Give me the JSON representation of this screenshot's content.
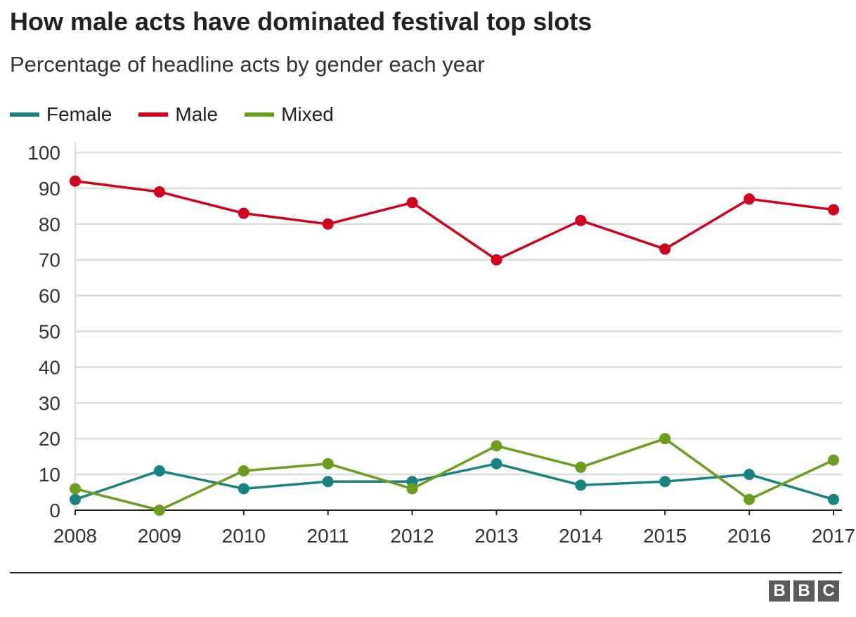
{
  "header": {
    "title": "How male acts have dominated festival top slots",
    "subtitle": "Percentage of headline acts by gender each year"
  },
  "legend": [
    {
      "label": "Female",
      "color": "#168382"
    },
    {
      "label": "Male",
      "color": "#d1001c"
    },
    {
      "label": "Mixed",
      "color": "#6b9e1f"
    }
  ],
  "colors": {
    "grid": "#dcdcdc",
    "axis": "#222222",
    "text": "#333333"
  },
  "chart_data": {
    "type": "line",
    "title": "How male acts have dominated festival top slots",
    "subtitle": "Percentage of headline acts by gender each year",
    "xlabel": "",
    "ylabel": "",
    "x": [
      2008,
      2009,
      2010,
      2011,
      2012,
      2013,
      2014,
      2015,
      2016,
      2017
    ],
    "xlim": [
      2008,
      2017
    ],
    "ylim": [
      0,
      100
    ],
    "yticks": [
      0,
      10,
      20,
      30,
      40,
      50,
      60,
      70,
      80,
      90,
      100
    ],
    "grid": true,
    "legend_position": "top-left",
    "series": [
      {
        "name": "Female",
        "color": "#168382",
        "values": [
          3,
          11,
          6,
          8,
          8,
          13,
          7,
          8,
          10,
          3
        ]
      },
      {
        "name": "Male",
        "color": "#d1001c",
        "values": [
          92,
          89,
          83,
          80,
          86,
          70,
          81,
          73,
          87,
          84
        ]
      },
      {
        "name": "Mixed",
        "color": "#6b9e1f",
        "values": [
          6,
          0,
          11,
          13,
          6,
          18,
          12,
          20,
          3,
          14
        ]
      }
    ]
  },
  "footer": {
    "logo_letters": [
      "B",
      "B",
      "C"
    ]
  }
}
